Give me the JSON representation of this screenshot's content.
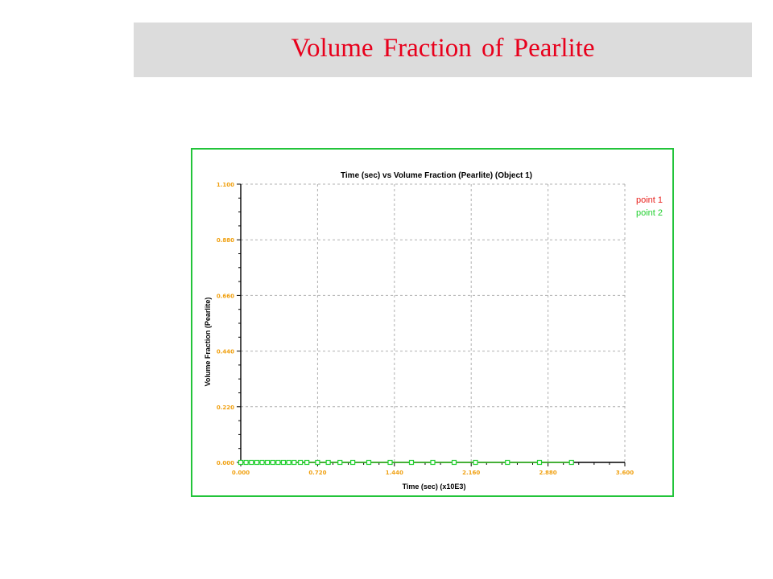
{
  "slide": {
    "title": "Volume Fraction of Pearlite"
  },
  "colors": {
    "title": "#e8001c",
    "title_bar": "#dcdcdc",
    "frame": "#22c43a",
    "tick_labels": "#f0a010",
    "series_point1": "#e8201c",
    "series_point2": "#22d030",
    "grid": "#b0b0b0"
  },
  "chart_data": {
    "type": "line",
    "title": "Time (sec) vs  Volume Fraction (Pearlite) (Object 1)",
    "xlabel": "Time (sec) (x10E3)",
    "ylabel": "Volume Fraction (Pearlite)",
    "xlim": [
      0.0,
      3.6
    ],
    "ylim": [
      0.0,
      1.1
    ],
    "xticks": [
      0.0,
      0.72,
      1.44,
      2.16,
      2.88,
      3.6
    ],
    "xtick_labels": [
      "0.000",
      "0.720",
      "1.440",
      "2.160",
      "2.880",
      "3.600"
    ],
    "yticks": [
      0.0,
      0.22,
      0.44,
      0.66,
      0.88,
      1.1
    ],
    "ytick_labels": [
      "0.000",
      "0.220",
      "0.440",
      "0.660",
      "0.880",
      "1.100"
    ],
    "grid": true,
    "legend_position": "top-right",
    "series": [
      {
        "name": "point 1",
        "color": "#e8201c",
        "marker": "circle",
        "x": [
          0.0,
          0.05,
          0.1,
          0.15,
          0.2,
          0.25,
          0.3,
          0.35,
          0.4,
          0.45,
          0.5,
          0.56,
          0.62,
          0.72,
          0.82,
          0.93,
          1.05,
          1.2,
          1.4,
          1.6,
          1.8,
          2.0,
          2.2,
          2.5,
          2.8,
          3.1
        ],
        "y": [
          0.0,
          0.0,
          0.0,
          0.0,
          0.0,
          0.0,
          0.0,
          0.0,
          0.0,
          0.0,
          0.0,
          0.0,
          0.0,
          0.0,
          0.0,
          0.0,
          0.0,
          0.0,
          0.0,
          0.0,
          0.0,
          0.0,
          0.0,
          0.0,
          0.0,
          0.0
        ]
      },
      {
        "name": "point 2",
        "color": "#22d030",
        "marker": "square",
        "x": [
          0.0,
          0.05,
          0.1,
          0.15,
          0.2,
          0.25,
          0.3,
          0.35,
          0.4,
          0.45,
          0.5,
          0.56,
          0.62,
          0.72,
          0.82,
          0.93,
          1.05,
          1.2,
          1.4,
          1.6,
          1.8,
          2.0,
          2.2,
          2.5,
          2.8,
          3.1
        ],
        "y": [
          0.0,
          0.0,
          0.0,
          0.0,
          0.0,
          0.0,
          0.0,
          0.0,
          0.0,
          0.0,
          0.0,
          0.0,
          0.0,
          0.0,
          0.0,
          0.0,
          0.0,
          0.0,
          0.0,
          0.0,
          0.0,
          0.0,
          0.0,
          0.0,
          0.0,
          0.0
        ]
      }
    ]
  }
}
